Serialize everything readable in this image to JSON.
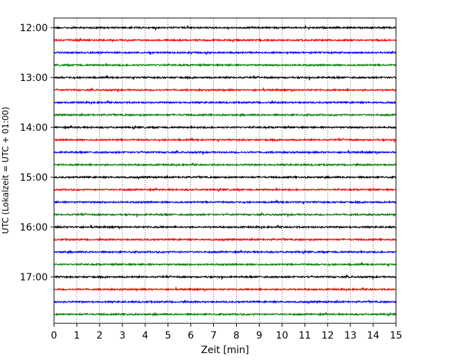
{
  "chart_data": {
    "type": "line",
    "title": "",
    "xlabel": "Zeit  [min]",
    "ylabel": "UTC (Lokalzeit = UTC + 01:00)",
    "xlim": [
      0,
      15
    ],
    "x_ticks": [
      "0",
      "1",
      "2",
      "3",
      "4",
      "5",
      "6",
      "7",
      "8",
      "9",
      "10",
      "11",
      "12",
      "13",
      "14",
      "15"
    ],
    "y_ticks": [
      "12:00",
      "13:00",
      "14:00",
      "15:00",
      "16:00",
      "17:00"
    ],
    "grid": "vertical dotted lines at each minute",
    "legend": "none",
    "trace_interval_minutes": 15,
    "trace_colors": [
      "#000000",
      "#ff0000",
      "#0000ff",
      "#008000"
    ],
    "traces": [
      {
        "start": "12:00",
        "color": "#000000"
      },
      {
        "start": "12:15",
        "color": "#ff0000"
      },
      {
        "start": "12:30",
        "color": "#0000ff"
      },
      {
        "start": "12:45",
        "color": "#008000"
      },
      {
        "start": "13:00",
        "color": "#000000"
      },
      {
        "start": "13:15",
        "color": "#ff0000"
      },
      {
        "start": "13:30",
        "color": "#0000ff"
      },
      {
        "start": "13:45",
        "color": "#008000"
      },
      {
        "start": "14:00",
        "color": "#000000"
      },
      {
        "start": "14:15",
        "color": "#ff0000"
      },
      {
        "start": "14:30",
        "color": "#0000ff"
      },
      {
        "start": "14:45",
        "color": "#008000"
      },
      {
        "start": "15:00",
        "color": "#000000"
      },
      {
        "start": "15:15",
        "color": "#ff0000"
      },
      {
        "start": "15:30",
        "color": "#0000ff"
      },
      {
        "start": "15:45",
        "color": "#008000"
      },
      {
        "start": "16:00",
        "color": "#000000"
      },
      {
        "start": "16:15",
        "color": "#ff0000"
      },
      {
        "start": "16:30",
        "color": "#0000ff"
      },
      {
        "start": "16:45",
        "color": "#008000"
      },
      {
        "start": "17:00",
        "color": "#000000"
      },
      {
        "start": "17:15",
        "color": "#ff0000"
      },
      {
        "start": "17:30",
        "color": "#0000ff"
      },
      {
        "start": "17:45",
        "color": "#008000"
      }
    ]
  }
}
